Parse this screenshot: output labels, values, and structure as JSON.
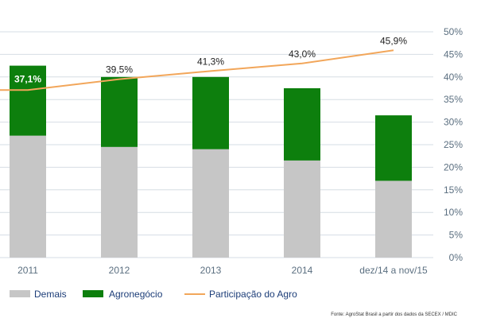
{
  "chart_data": {
    "type": "bar",
    "categories": [
      "2011",
      "2012",
      "2013",
      "2014",
      "dez/14 a nov/15"
    ],
    "series": [
      {
        "name": "Demais",
        "type": "stacked-bar",
        "color": "#c6c6c6",
        "values": [
          27,
          24.5,
          24,
          21.5,
          17
        ]
      },
      {
        "name": "Agronegócio",
        "type": "stacked-bar",
        "color": "#0d7f0d",
        "values": [
          15.5,
          15.5,
          16,
          16,
          14.5
        ]
      },
      {
        "name": "Participação do Agro",
        "type": "line",
        "color": "#f2a65a",
        "values": [
          37.1,
          39.5,
          41.3,
          43.0,
          45.9
        ]
      }
    ],
    "data_labels": [
      "37,1%",
      "39,5%",
      "41,3%",
      "43,0%",
      "45,9%"
    ],
    "y_ticks": [
      "0%",
      "5%",
      "10%",
      "15%",
      "20%",
      "25%",
      "30%",
      "35%",
      "40%",
      "45%",
      "50%"
    ],
    "ylim": [
      0,
      50
    ],
    "y_axis_position": "right",
    "grid": true,
    "legend_position": "bottom-left"
  },
  "source": "Fonte: AgroStat Brasil a partir dos dados da SECEX / MDIC"
}
